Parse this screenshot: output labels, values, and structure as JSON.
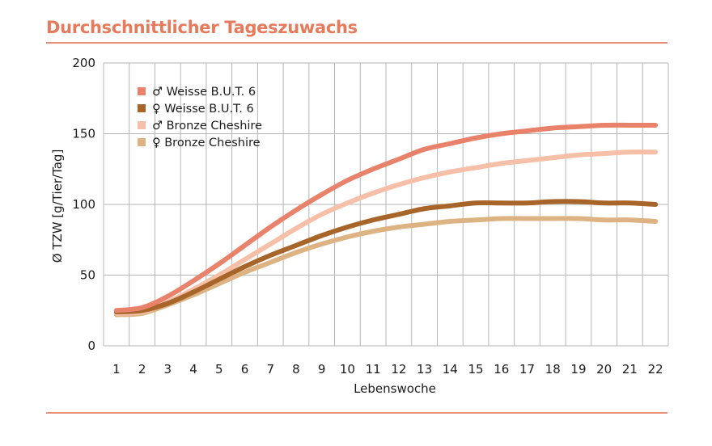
{
  "title": "Durchschnittlicher Tageszuwachs",
  "chart_data": {
    "type": "line",
    "xlabel": "Lebenswoche",
    "ylabel": "Ø TZW [g/Tier/Tag]",
    "ylim": [
      0,
      200
    ],
    "yticks": [
      0,
      50,
      100,
      150,
      200
    ],
    "x": [
      1,
      2,
      3,
      4,
      5,
      6,
      7,
      8,
      9,
      10,
      11,
      12,
      13,
      14,
      15,
      16,
      17,
      18,
      19,
      20,
      21,
      22
    ],
    "grid": true,
    "legend_position": "top-left",
    "series": [
      {
        "name": "♂ Weisse B.U.T. 6",
        "color": "#e8826a",
        "values": [
          25,
          27,
          35,
          46,
          58,
          71,
          84,
          96,
          107,
          117,
          125,
          132,
          139,
          143,
          147,
          150,
          152,
          154,
          155,
          156,
          156,
          156
        ]
      },
      {
        "name": "♀ Weisse B.U.T. 6",
        "color": "#a8652a",
        "values": [
          24,
          25,
          30,
          38,
          47,
          56,
          64,
          71,
          78,
          84,
          89,
          93,
          97,
          99,
          101,
          101,
          101,
          102,
          102,
          101,
          101,
          100
        ]
      },
      {
        "name": "♂ Bronze Cheshire",
        "color": "#f6bfa8",
        "values": [
          23,
          24,
          31,
          40,
          50,
          61,
          72,
          83,
          93,
          101,
          108,
          114,
          119,
          123,
          126,
          129,
          131,
          133,
          135,
          136,
          137,
          137
        ]
      },
      {
        "name": "♀ Bronze Cheshire",
        "color": "#deb384",
        "values": [
          22,
          23,
          29,
          36,
          44,
          52,
          59,
          66,
          72,
          77,
          81,
          84,
          86,
          88,
          89,
          90,
          90,
          90,
          90,
          89,
          89,
          88
        ]
      }
    ]
  }
}
